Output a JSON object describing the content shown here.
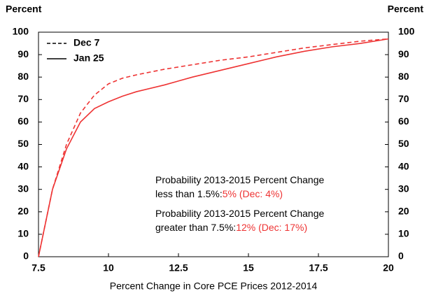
{
  "chart_data": {
    "type": "line",
    "ylabel": "Percent",
    "y2label": "Percent",
    "xlabel": "Percent Change in Core PCE Prices 2012-2014",
    "x": [
      7.5,
      8,
      8.5,
      9,
      9.5,
      10,
      10.5,
      11,
      12,
      13,
      14,
      15,
      16,
      17,
      18,
      19,
      20
    ],
    "series": [
      {
        "name": "Dec 7",
        "color": "#ee3333",
        "dash": true,
        "values": [
          0,
          30,
          50,
          64,
          72,
          77,
          79.5,
          81,
          83.5,
          85.5,
          87.5,
          89,
          91,
          93,
          94.5,
          96,
          97
        ]
      },
      {
        "name": "Jan 25",
        "color": "#ee3333",
        "dash": false,
        "values": [
          0,
          30,
          48,
          60,
          66,
          69,
          71.5,
          73.5,
          76.5,
          80,
          83,
          86,
          89,
          91.5,
          93.5,
          95,
          97
        ]
      }
    ],
    "xlim": [
      7.5,
      20
    ],
    "xticks": [
      7.5,
      10,
      12.5,
      15,
      17.5,
      20
    ],
    "ylim": [
      0,
      100
    ],
    "yticks": [
      0,
      10,
      20,
      30,
      40,
      50,
      60,
      70,
      80,
      90,
      100
    ],
    "y2lim": [
      0,
      100
    ],
    "y2ticks": [
      0,
      10,
      20,
      30,
      40,
      50,
      60,
      70,
      80,
      90,
      100
    ],
    "legend": "upper left",
    "annotations": [
      {
        "lines": [
          "Probability 2013-2015 Percent Change",
          "less than 1.5%:"
        ],
        "highlight": "5% (Dec: 4%)",
        "highlight_color": "#ee3333"
      },
      {
        "lines": [
          "Probability 2013-2015 Percent Change",
          "greater than 7.5%:"
        ],
        "highlight": "12% (Dec: 17%)",
        "highlight_color": "#ee3333"
      }
    ]
  }
}
